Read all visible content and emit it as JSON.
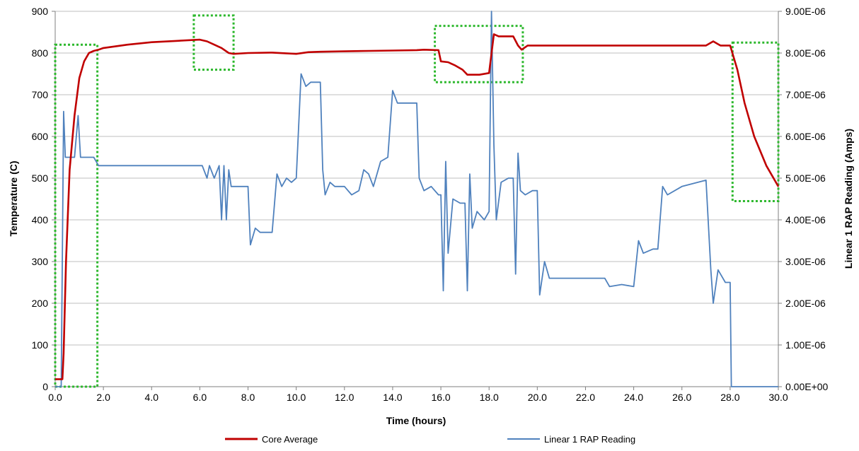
{
  "chart_data": {
    "type": "line",
    "title": "",
    "xlabel": "Time (hours)",
    "ylabel_left": "Temperature (C)",
    "ylabel_right": "Linear 1 RAP Reading (Amps)",
    "xlim": [
      0,
      30
    ],
    "ylim_left": [
      0,
      900
    ],
    "ylim_right": [
      0,
      9e-06
    ],
    "x_ticks": [
      "0.0",
      "2.0",
      "4.0",
      "6.0",
      "8.0",
      "10.0",
      "12.0",
      "14.0",
      "16.0",
      "18.0",
      "20.0",
      "22.0",
      "24.0",
      "26.0",
      "28.0",
      "30.0"
    ],
    "y_left_ticks": [
      "0",
      "100",
      "200",
      "300",
      "400",
      "500",
      "600",
      "700",
      "800",
      "900"
    ],
    "y_right_ticks": [
      "0.00E+00",
      "1.00E-06",
      "2.00E-06",
      "3.00E-06",
      "4.00E-06",
      "5.00E-06",
      "6.00E-06",
      "7.00E-06",
      "8.00E-06",
      "9.00E-06"
    ],
    "grid": true,
    "legend_position": "bottom",
    "colors": {
      "core_average": "#c00000",
      "rap_reading": "#4f81bd",
      "highlight_box": "#2db82d",
      "grid": "#bfbfbf",
      "axis": "#7f7f7f"
    },
    "series": [
      {
        "name": "Core Average",
        "axis": "left",
        "x": [
          0.0,
          0.3,
          0.35,
          0.45,
          0.6,
          0.8,
          1.0,
          1.2,
          1.4,
          1.6,
          1.8,
          2.0,
          3.0,
          4.0,
          5.0,
          6.0,
          6.3,
          6.6,
          6.9,
          7.2,
          7.4,
          8.0,
          9.0,
          10.0,
          10.5,
          11.0,
          12.0,
          13.0,
          14.0,
          15.0,
          15.3,
          15.9,
          16.0,
          16.3,
          16.6,
          16.9,
          17.1,
          17.4,
          17.6,
          18.0,
          18.2,
          18.4,
          18.6,
          19.0,
          19.2,
          19.35,
          19.6,
          20.0,
          21.0,
          22.0,
          23.0,
          24.0,
          25.0,
          26.0,
          27.0,
          27.3,
          27.6,
          28.0,
          28.3,
          28.6,
          29.0,
          29.5,
          30.0
        ],
        "values": [
          18,
          18,
          80,
          300,
          520,
          650,
          740,
          780,
          800,
          805,
          808,
          812,
          820,
          826,
          829,
          832,
          828,
          820,
          812,
          800,
          798,
          800,
          801,
          798,
          802,
          803,
          804,
          805,
          806,
          807,
          808,
          807,
          780,
          778,
          770,
          760,
          748,
          748,
          748,
          752,
          845,
          840,
          840,
          840,
          818,
          808,
          818,
          818,
          818,
          818,
          818,
          818,
          818,
          818,
          818,
          828,
          818,
          818,
          760,
          680,
          600,
          530,
          480
        ]
      },
      {
        "name": "Linear 1 RAP Reading",
        "axis": "right",
        "x": [
          0.0,
          0.25,
          0.35,
          0.42,
          0.5,
          0.6,
          0.8,
          0.95,
          1.05,
          1.2,
          1.4,
          1.6,
          1.8,
          2.0,
          3.0,
          4.0,
          5.0,
          6.0,
          6.1,
          6.3,
          6.4,
          6.6,
          6.8,
          6.9,
          7.0,
          7.1,
          7.2,
          7.3,
          7.4,
          7.6,
          7.8,
          8.0,
          8.1,
          8.3,
          8.5,
          8.8,
          9.0,
          9.2,
          9.4,
          9.6,
          9.8,
          10.0,
          10.2,
          10.4,
          10.6,
          11.0,
          11.1,
          11.2,
          11.4,
          11.6,
          12.0,
          12.3,
          12.6,
          12.8,
          13.0,
          13.2,
          13.5,
          13.8,
          14.0,
          14.2,
          14.4,
          14.8,
          15.0,
          15.1,
          15.3,
          15.6,
          15.9,
          16.0,
          16.1,
          16.2,
          16.3,
          16.5,
          16.8,
          17.0,
          17.1,
          17.2,
          17.3,
          17.5,
          17.8,
          18.0,
          18.1,
          18.2,
          18.3,
          18.5,
          18.8,
          19.0,
          19.1,
          19.2,
          19.3,
          19.5,
          19.8,
          20.0,
          20.1,
          20.3,
          20.5,
          21.0,
          22.0,
          22.8,
          23.0,
          23.5,
          24.0,
          24.2,
          24.4,
          24.8,
          25.0,
          25.2,
          25.4,
          26.0,
          27.0,
          27.2,
          27.3,
          27.5,
          27.8,
          28.0,
          28.05,
          30.0
        ],
        "values": [
          0,
          0,
          6.6e-06,
          5.5e-06,
          5.5e-06,
          5.5e-06,
          5.5e-06,
          6.5e-06,
          5.5e-06,
          5.5e-06,
          5.5e-06,
          5.5e-06,
          5.3e-06,
          5.3e-06,
          5.3e-06,
          5.3e-06,
          5.3e-06,
          5.3e-06,
          5.3e-06,
          5e-06,
          5.3e-06,
          5e-06,
          5.3e-06,
          4e-06,
          5.3e-06,
          4e-06,
          5.2e-06,
          4.8e-06,
          4.8e-06,
          4.8e-06,
          4.8e-06,
          4.8e-06,
          3.4e-06,
          3.8e-06,
          3.7e-06,
          3.7e-06,
          3.7e-06,
          5.1e-06,
          4.8e-06,
          5e-06,
          4.9e-06,
          5e-06,
          7.5e-06,
          7.2e-06,
          7.3e-06,
          7.3e-06,
          5.2e-06,
          4.6e-06,
          4.9e-06,
          4.8e-06,
          4.8e-06,
          4.6e-06,
          4.7e-06,
          5.2e-06,
          5.1e-06,
          4.8e-06,
          5.4e-06,
          5.5e-06,
          7.1e-06,
          6.8e-06,
          6.8e-06,
          6.8e-06,
          6.8e-06,
          5e-06,
          4.7e-06,
          4.8e-06,
          4.6e-06,
          4.6e-06,
          2.3e-06,
          5.4e-06,
          3.2e-06,
          4.5e-06,
          4.4e-06,
          4.4e-06,
          2.3e-06,
          5.1e-06,
          3.8e-06,
          4.2e-06,
          4e-06,
          4.2e-06,
          9e-06,
          5.8e-06,
          4e-06,
          4.9e-06,
          5e-06,
          5e-06,
          2.7e-06,
          5.6e-06,
          4.7e-06,
          4.6e-06,
          4.7e-06,
          4.7e-06,
          2.2e-06,
          3e-06,
          2.6e-06,
          2.6e-06,
          2.6e-06,
          2.6e-06,
          2.4e-06,
          2.45e-06,
          2.4e-06,
          3.5e-06,
          3.2e-06,
          3.3e-06,
          3.3e-06,
          4.8e-06,
          4.6e-06,
          4.8e-06,
          4.95e-06,
          2.8e-06,
          2e-06,
          2.8e-06,
          2.5e-06,
          2.5e-06,
          0,
          0
        ]
      }
    ],
    "highlight_regions": [
      {
        "x": [
          0.0,
          1.75
        ],
        "y": [
          0,
          820
        ]
      },
      {
        "x": [
          5.75,
          7.4
        ],
        "y": [
          760,
          890
        ]
      },
      {
        "x": [
          15.75,
          19.4
        ],
        "y": [
          730,
          865
        ]
      },
      {
        "x": [
          28.1,
          30.0
        ],
        "y": [
          445,
          825
        ]
      }
    ]
  }
}
